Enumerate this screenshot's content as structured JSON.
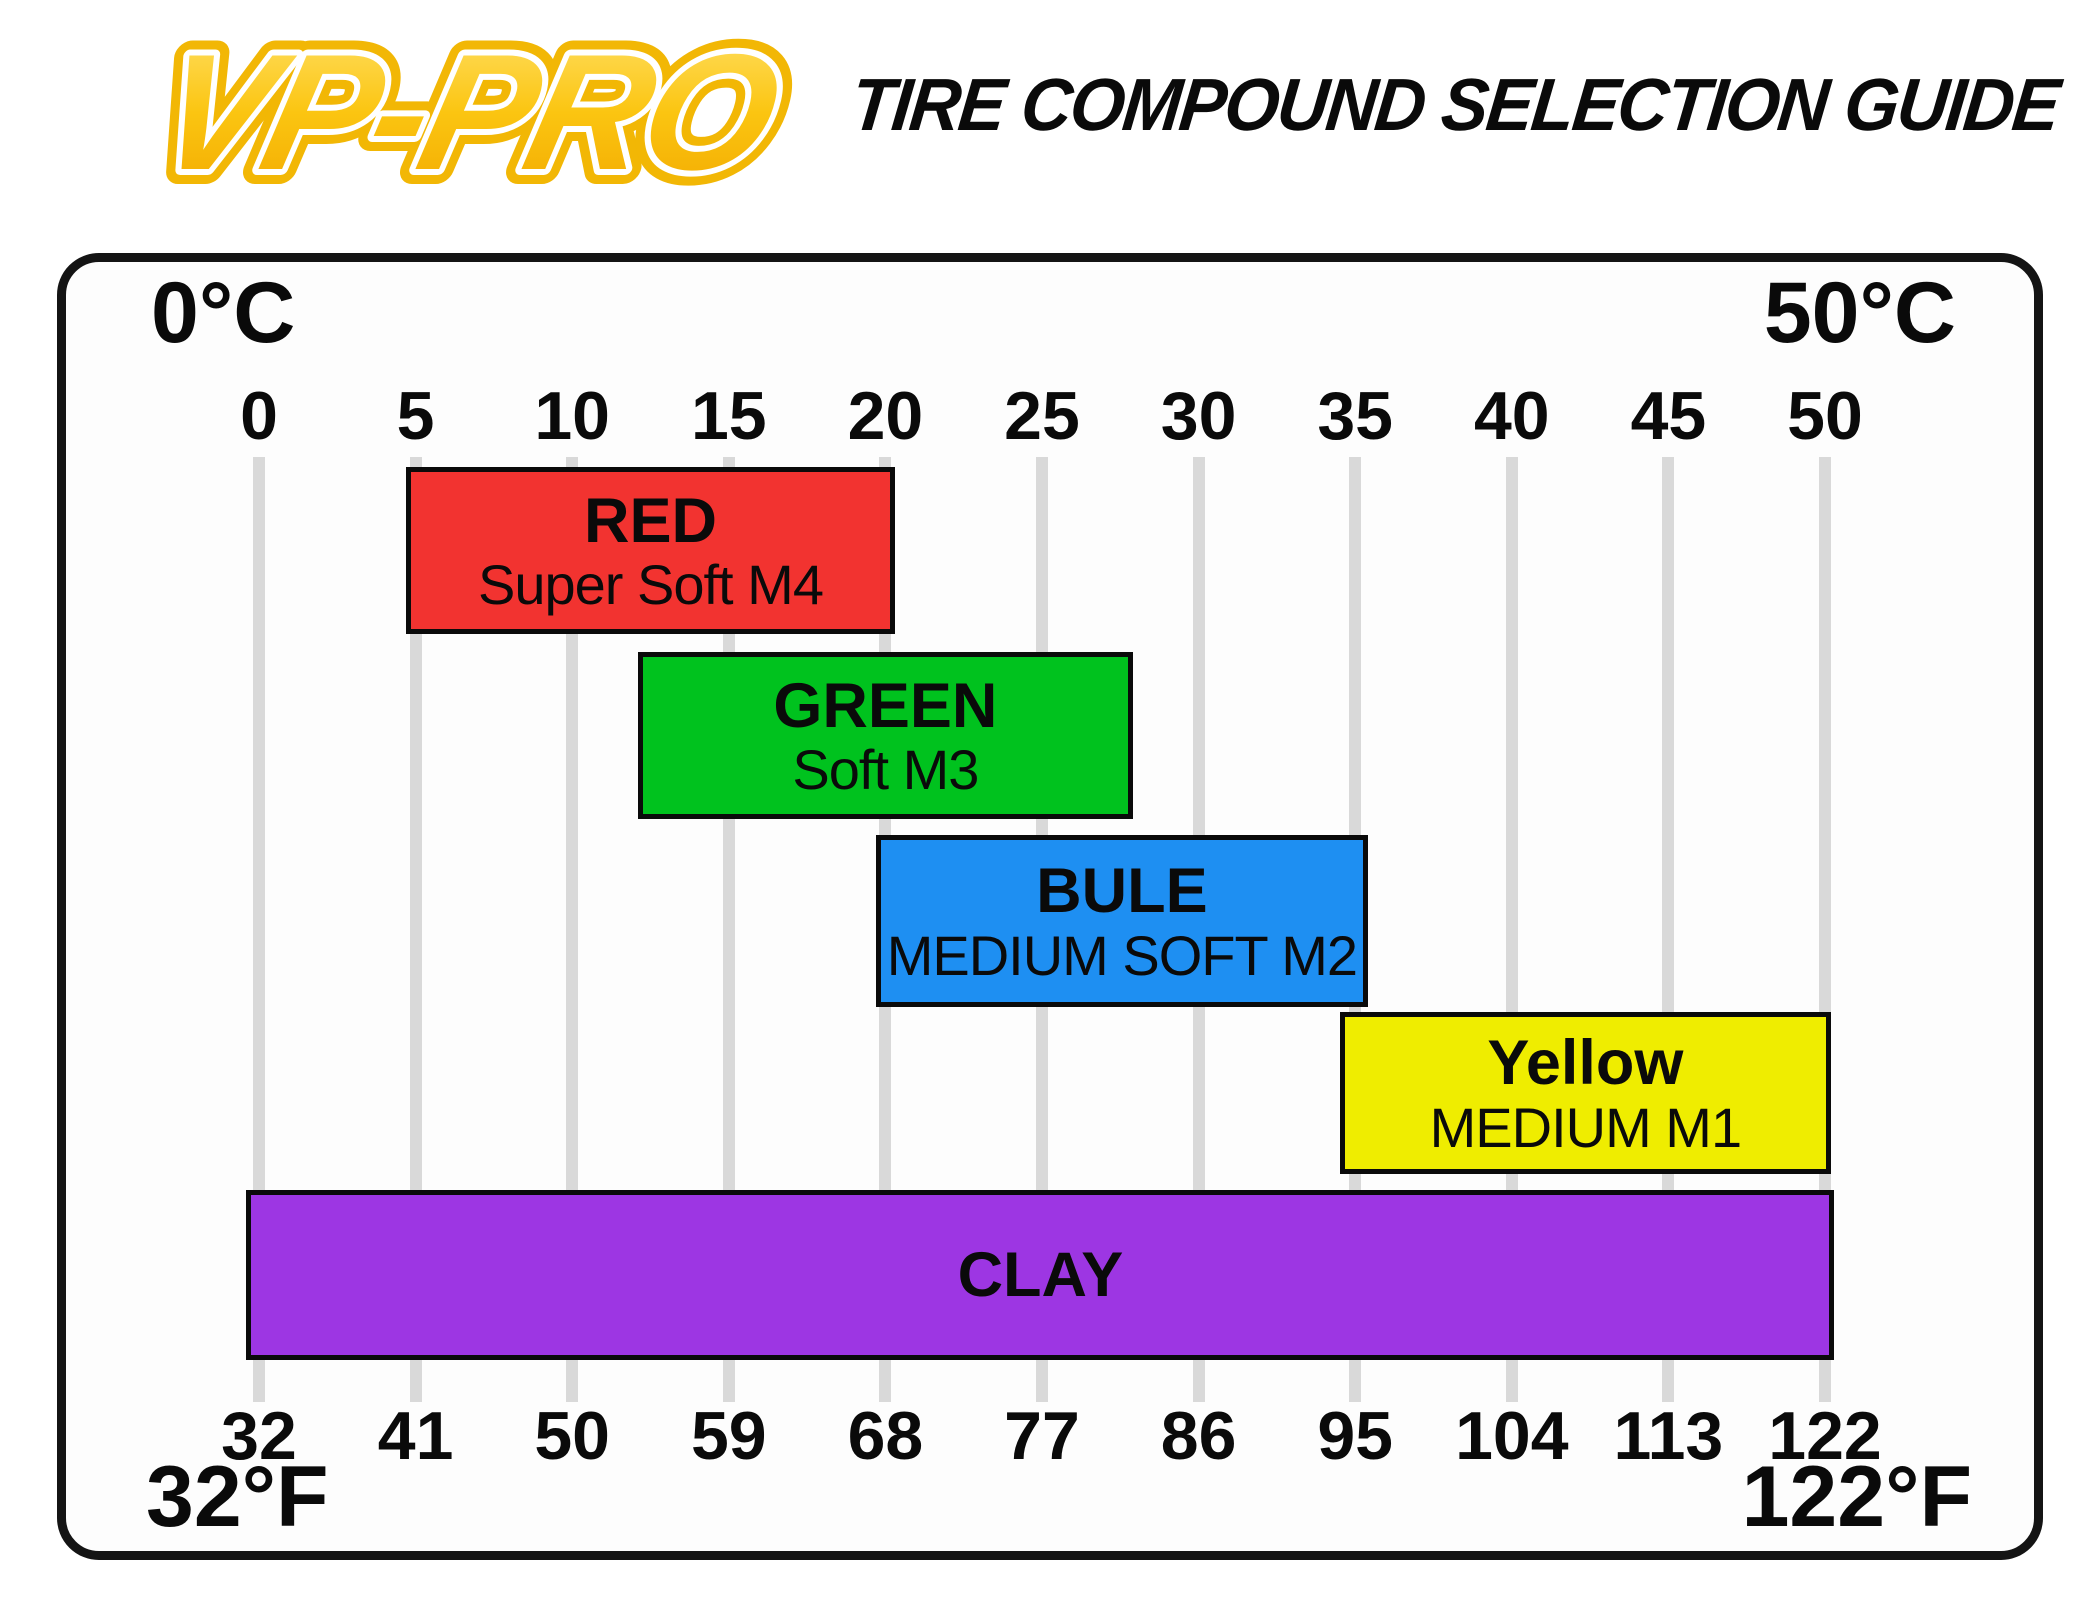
{
  "header": {
    "logo_text": "VP-PRO",
    "title": "TIRE COMPOUND SELECTION GUIDE",
    "logo_colors": {
      "gradient_top": "#FFE066",
      "gradient_mid": "#FBC511",
      "gradient_bottom": "#F2A900",
      "outer_outline": "#F2B705",
      "inner_outline": "#FFFFFF"
    }
  },
  "chart_data": {
    "type": "bar",
    "title": "TIRE COMPOUND SELECTION GUIDE",
    "orientation": "horizontal-range-bars",
    "grid": "vertical-gridlines-on",
    "grid_color": "#D9D9D9",
    "axis_range_c": [
      0,
      50
    ],
    "celsius_axis": {
      "label_left": "0°C",
      "label_right": "50°C",
      "ticks": [
        0,
        5,
        10,
        15,
        20,
        25,
        30,
        35,
        40,
        45,
        50
      ]
    },
    "fahrenheit_axis": {
      "label_left": "32°F",
      "label_right": "122°F",
      "ticks": [
        32,
        41,
        50,
        59,
        68,
        77,
        86,
        95,
        104,
        113,
        122
      ]
    },
    "bars": [
      {
        "name": "RED",
        "subtitle": "Super Soft M4",
        "color": "#F23330",
        "start_c": 4.7,
        "end_c": 20.3
      },
      {
        "name": "GREEN",
        "subtitle": "Soft M3",
        "color": "#00C21E",
        "start_c": 12.1,
        "end_c": 27.9
      },
      {
        "name": "BULE",
        "subtitle": "MEDIUM SOFT M2",
        "color": "#1E8FF2",
        "start_c": 19.7,
        "end_c": 35.4
      },
      {
        "name": "Yellow",
        "subtitle": "MEDIUM M1",
        "color": "#EFED00",
        "start_c": 34.5,
        "end_c": 50.2
      },
      {
        "name": "CLAY",
        "subtitle": "",
        "color": "#9D36E3",
        "start_c": -0.4,
        "end_c": 50.3
      }
    ]
  }
}
